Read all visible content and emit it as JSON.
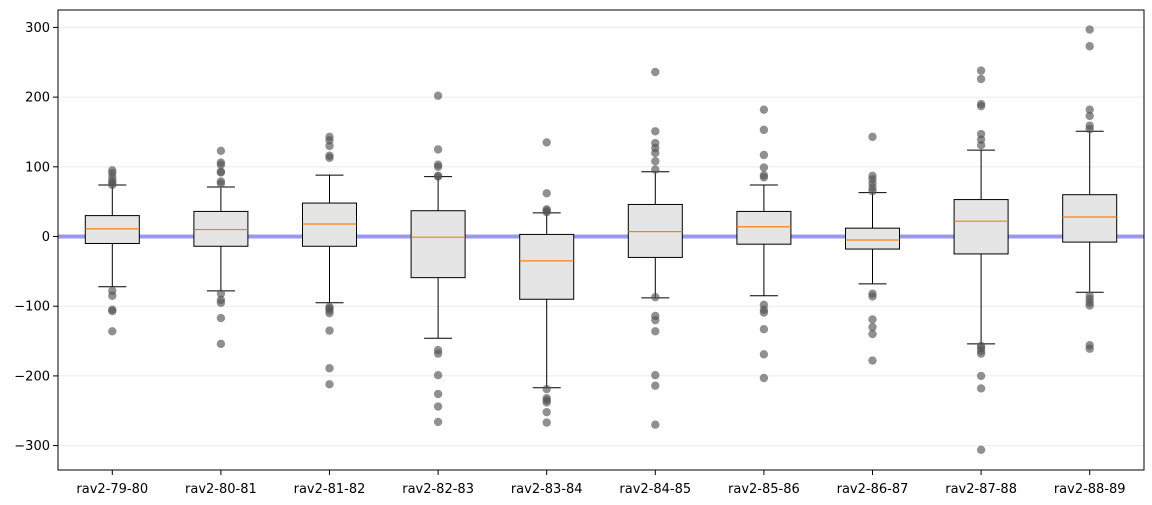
{
  "chart_data": {
    "type": "box",
    "title": "",
    "xlabel": "",
    "ylabel": "",
    "ylim": [
      -335,
      325
    ],
    "yticks": [
      300,
      200,
      100,
      0,
      -100,
      -200,
      -300
    ],
    "ytick_labels": [
      "300",
      "200",
      "100",
      "0",
      "−100",
      "−200",
      "−300"
    ],
    "grid": "horizontal",
    "reference_line": {
      "y": 0
    },
    "colors": {
      "box_fill": "#e5e5e5",
      "box_edge": "#000000",
      "median": "#ff7f0e",
      "outlier": "#555555",
      "reference_line": "#9999ee",
      "grid": "#ebebeb"
    },
    "categories": [
      "rav2-79-80",
      "rav2-80-81",
      "rav2-81-82",
      "rav2-82-83",
      "rav2-83-84",
      "rav2-84-85",
      "rav2-85-86",
      "rav2-86-87",
      "rav2-87-88",
      "rav2-88-89"
    ],
    "boxes": [
      {
        "whislo": -72,
        "q1": -10,
        "med": 11,
        "q3": 30,
        "whishi": 74,
        "fliers": [
          95,
          91,
          85,
          80,
          77,
          74,
          -78,
          -85,
          -105,
          -107,
          -136
        ]
      },
      {
        "whislo": -78,
        "q1": -14,
        "med": 10,
        "q3": 36,
        "whishi": 71,
        "fliers": [
          123,
          106,
          103,
          93,
          92,
          79,
          76,
          -82,
          -91,
          -95,
          -117,
          -154
        ]
      },
      {
        "whislo": -95,
        "q1": -14,
        "med": 18,
        "q3": 48,
        "whishi": 88,
        "fliers": [
          143,
          138,
          130,
          116,
          113,
          -101,
          -103,
          -106,
          -110,
          -135,
          -189,
          -212
        ]
      },
      {
        "whislo": -146,
        "q1": -59,
        "med": -1,
        "q3": 37,
        "whishi": 86,
        "fliers": [
          202,
          125,
          103,
          100,
          87,
          86,
          -163,
          -168,
          -199,
          -226,
          -244,
          -266
        ]
      },
      {
        "whislo": -217,
        "q1": -90,
        "med": -35,
        "q3": 3,
        "whishi": 34,
        "fliers": [
          135,
          62,
          39,
          37,
          35,
          -219,
          -232,
          -235,
          -238,
          -252,
          -267
        ]
      },
      {
        "whislo": -88,
        "q1": -30,
        "med": 7,
        "q3": 46,
        "whishi": 93,
        "fliers": [
          236,
          151,
          134,
          127,
          120,
          108,
          96,
          -87,
          -114,
          -120,
          -136,
          -199,
          -214,
          -270
        ]
      },
      {
        "whislo": -85,
        "q1": -11,
        "med": 14,
        "q3": 36,
        "whishi": 74,
        "fliers": [
          182,
          153,
          117,
          99,
          88,
          85,
          -98,
          -105,
          -109,
          -133,
          -169,
          -203
        ]
      },
      {
        "whislo": -68,
        "q1": -18,
        "med": -5,
        "q3": 12,
        "whishi": 63,
        "fliers": [
          143,
          87,
          82,
          76,
          70,
          65,
          -82,
          -86,
          -119,
          -130,
          -140,
          -178
        ]
      },
      {
        "whislo": -154,
        "q1": -25,
        "med": 22,
        "q3": 53,
        "whishi": 124,
        "fliers": [
          238,
          226,
          190,
          187,
          147,
          139,
          131,
          -157,
          -160,
          -164,
          -168,
          -200,
          -218,
          -306
        ]
      },
      {
        "whislo": -80,
        "q1": -8,
        "med": 28,
        "q3": 60,
        "whishi": 151,
        "fliers": [
          297,
          273,
          182,
          173,
          159,
          154,
          -85,
          -90,
          -95,
          -99,
          -156,
          -161
        ]
      }
    ]
  }
}
